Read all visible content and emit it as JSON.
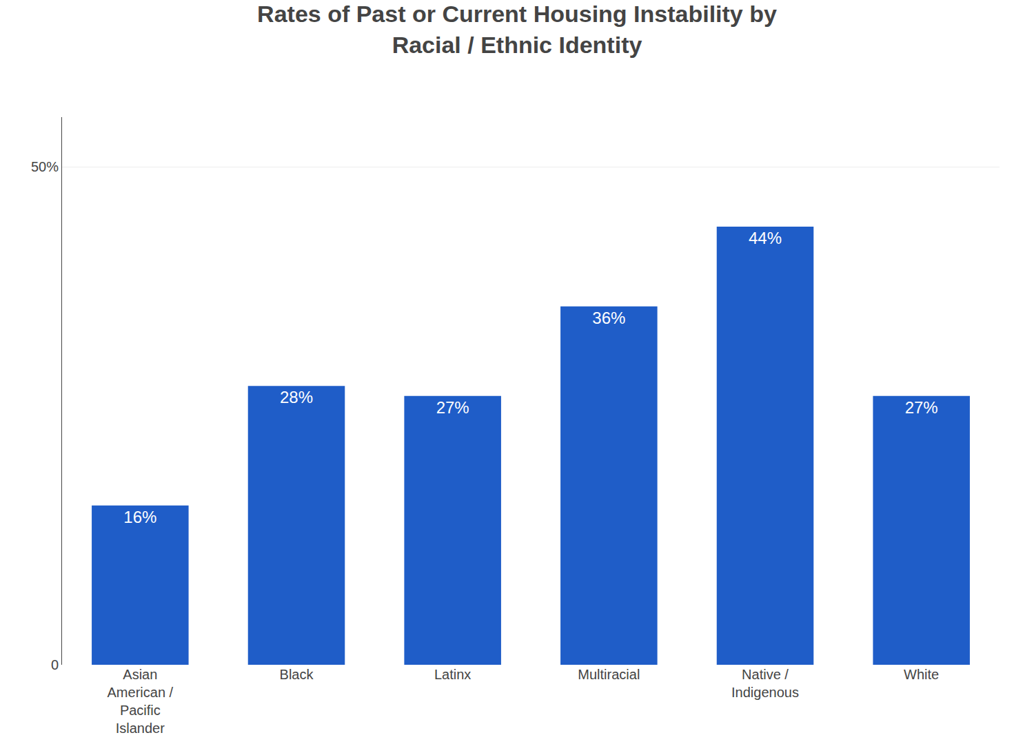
{
  "chart_data": {
    "type": "bar",
    "title": "Rates of Past or Current Housing Instability by\nRacial / Ethnic Identity",
    "categories": [
      "Asian\nAmerican /\nPacific\nIslander",
      "Black",
      "Latinx",
      "Multiracial",
      "Native /\nIndigenous",
      "White"
    ],
    "values": [
      16,
      28,
      27,
      36,
      44,
      27
    ],
    "value_labels": [
      "16%",
      "28%",
      "27%",
      "36%",
      "44%",
      "27%"
    ],
    "data_labels": true,
    "color": "#1F5DC8",
    "ylim": [
      0,
      55
    ],
    "yticks": [
      0,
      {
        "value": 50,
        "label": "50%"
      }
    ],
    "grid": true
  }
}
